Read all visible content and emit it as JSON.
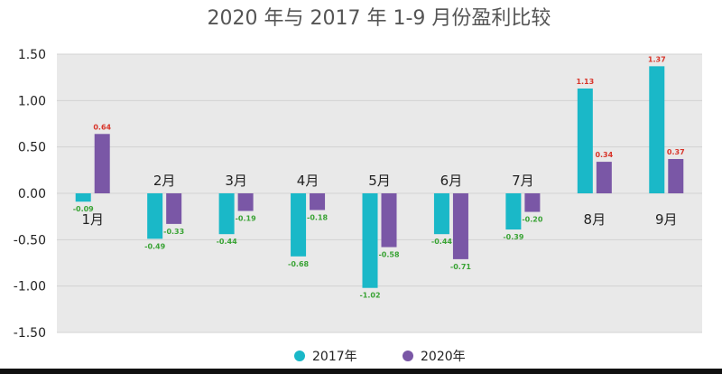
{
  "chart_data": {
    "type": "bar",
    "title": "2020 年与 2017 年 1-9 月份盈利比较",
    "categories": [
      "1月",
      "2月",
      "3月",
      "4月",
      "5月",
      "6月",
      "7月",
      "8月",
      "9月"
    ],
    "series": [
      {
        "name": "2017年",
        "color": "#1ab8c8",
        "values": [
          -0.09,
          -0.49,
          -0.44,
          -0.68,
          -1.02,
          -0.44,
          -0.39,
          1.13,
          1.37
        ],
        "labels": [
          "-0.09",
          "-0.49",
          "-0.44",
          "-0.68",
          "-1.02",
          "-0.44",
          "-0.39",
          "1.13",
          "1.37"
        ]
      },
      {
        "name": "2020年",
        "color": "#7a57a6",
        "values": [
          0.64,
          -0.33,
          -0.19,
          -0.18,
          -0.58,
          -0.71,
          -0.2,
          0.34,
          0.37
        ],
        "labels": [
          "0.64",
          "-0.33",
          "-0.19",
          "-0.18",
          "-0.58",
          "-0.71",
          "-0.20",
          "0.34",
          "0.37"
        ]
      }
    ],
    "ylim": [
      -1.5,
      1.5
    ],
    "yticks": [
      "1.50",
      "1.00",
      "0.50",
      "0.00",
      "-0.50",
      "-1.00",
      "-1.50"
    ],
    "ytick_values": [
      1.5,
      1.0,
      0.5,
      0.0,
      -0.5,
      -1.0,
      -1.5
    ],
    "xlabel": "",
    "ylabel": "",
    "grid": true,
    "legend_position": "bottom",
    "colors": {
      "plot_background": "#e9e9e9",
      "gridline": "#d2d2d2",
      "positive_label": "#d8352a",
      "negative_label": "#3aa335",
      "text": "#222222",
      "title_text": "#555555"
    }
  }
}
